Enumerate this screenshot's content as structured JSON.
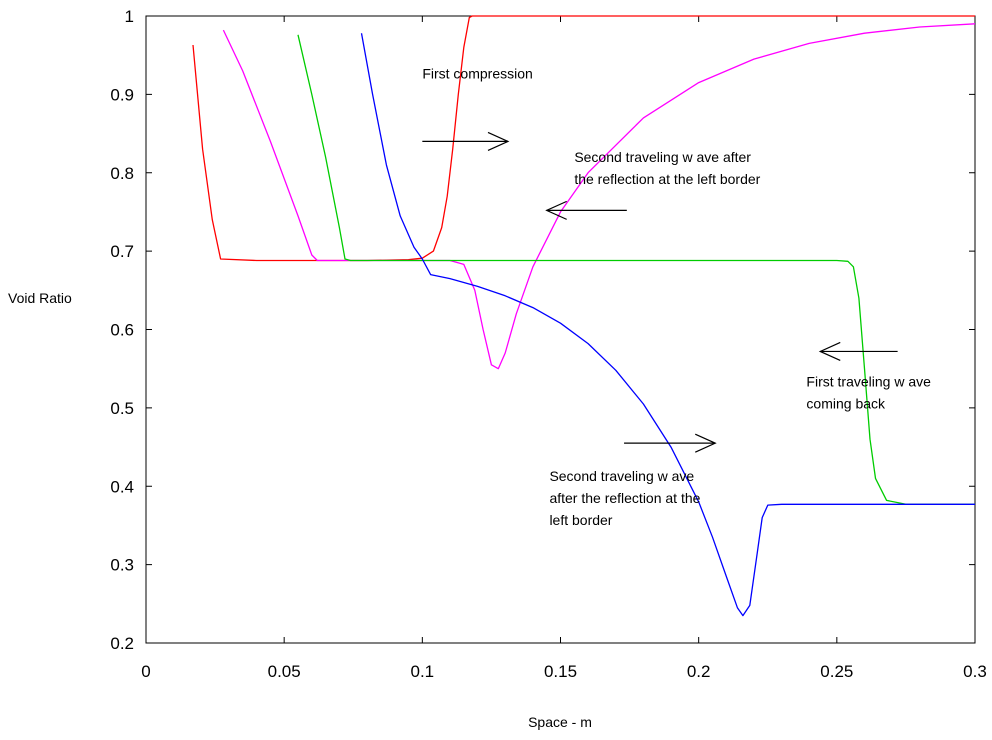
{
  "chart_data": {
    "type": "line",
    "title": "",
    "xlabel": "Space - m",
    "ylabel": "Void Ratio",
    "xlim": [
      0,
      0.3
    ],
    "ylim": [
      0.2,
      1.0
    ],
    "xticks": [
      "0",
      "0.05",
      "0.1",
      "0.15",
      "0.2",
      "0.25",
      "0.3"
    ],
    "yticks": [
      "0.2",
      "0.3",
      "0.4",
      "0.5",
      "0.6",
      "0.7",
      "0.8",
      "0.9",
      "1"
    ],
    "grid": false,
    "legend": "none",
    "series": [
      {
        "color": "#ff0000",
        "points": [
          [
            0.017,
            0.963
          ],
          [
            0.0205,
            0.83
          ],
          [
            0.024,
            0.74
          ],
          [
            0.027,
            0.69
          ],
          [
            0.04,
            0.688
          ],
          [
            0.06,
            0.688
          ],
          [
            0.08,
            0.688
          ],
          [
            0.095,
            0.689
          ],
          [
            0.1,
            0.691
          ],
          [
            0.104,
            0.7
          ],
          [
            0.107,
            0.73
          ],
          [
            0.109,
            0.77
          ],
          [
            0.111,
            0.83
          ],
          [
            0.113,
            0.9
          ],
          [
            0.115,
            0.96
          ],
          [
            0.117,
            0.998
          ],
          [
            0.118,
            1.0
          ],
          [
            0.15,
            1.0
          ],
          [
            0.2,
            1.0
          ],
          [
            0.25,
            1.0
          ],
          [
            0.3,
            1.0
          ]
        ]
      },
      {
        "color": "#ff00ff",
        "points": [
          [
            0.028,
            0.982
          ],
          [
            0.035,
            0.93
          ],
          [
            0.045,
            0.84
          ],
          [
            0.055,
            0.745
          ],
          [
            0.06,
            0.695
          ],
          [
            0.062,
            0.688
          ],
          [
            0.08,
            0.688
          ],
          [
            0.1,
            0.688
          ],
          [
            0.11,
            0.688
          ],
          [
            0.115,
            0.683
          ],
          [
            0.119,
            0.65
          ],
          [
            0.122,
            0.6
          ],
          [
            0.125,
            0.555
          ],
          [
            0.1275,
            0.55
          ],
          [
            0.13,
            0.57
          ],
          [
            0.134,
            0.62
          ],
          [
            0.14,
            0.68
          ],
          [
            0.15,
            0.75
          ],
          [
            0.16,
            0.8
          ],
          [
            0.18,
            0.87
          ],
          [
            0.2,
            0.915
          ],
          [
            0.22,
            0.945
          ],
          [
            0.24,
            0.965
          ],
          [
            0.26,
            0.978
          ],
          [
            0.28,
            0.986
          ],
          [
            0.3,
            0.99
          ]
        ]
      },
      {
        "color": "#00cc00",
        "points": [
          [
            0.055,
            0.976
          ],
          [
            0.06,
            0.9
          ],
          [
            0.065,
            0.82
          ],
          [
            0.07,
            0.73
          ],
          [
            0.072,
            0.69
          ],
          [
            0.074,
            0.688
          ],
          [
            0.1,
            0.688
          ],
          [
            0.15,
            0.688
          ],
          [
            0.2,
            0.688
          ],
          [
            0.25,
            0.688
          ],
          [
            0.254,
            0.687
          ],
          [
            0.256,
            0.68
          ],
          [
            0.258,
            0.64
          ],
          [
            0.26,
            0.55
          ],
          [
            0.262,
            0.46
          ],
          [
            0.264,
            0.41
          ],
          [
            0.268,
            0.382
          ],
          [
            0.275,
            0.377
          ],
          [
            0.3,
            0.377
          ]
        ]
      },
      {
        "color": "#0000ff",
        "points": [
          [
            0.078,
            0.978
          ],
          [
            0.082,
            0.9
          ],
          [
            0.087,
            0.81
          ],
          [
            0.092,
            0.745
          ],
          [
            0.097,
            0.705
          ],
          [
            0.1,
            0.69
          ],
          [
            0.103,
            0.67
          ],
          [
            0.11,
            0.665
          ],
          [
            0.12,
            0.655
          ],
          [
            0.13,
            0.643
          ],
          [
            0.14,
            0.628
          ],
          [
            0.15,
            0.608
          ],
          [
            0.16,
            0.582
          ],
          [
            0.17,
            0.548
          ],
          [
            0.18,
            0.505
          ],
          [
            0.19,
            0.45
          ],
          [
            0.2,
            0.38
          ],
          [
            0.205,
            0.335
          ],
          [
            0.21,
            0.285
          ],
          [
            0.214,
            0.245
          ],
          [
            0.216,
            0.235
          ],
          [
            0.2185,
            0.248
          ],
          [
            0.221,
            0.31
          ],
          [
            0.223,
            0.36
          ],
          [
            0.225,
            0.376
          ],
          [
            0.23,
            0.377
          ],
          [
            0.25,
            0.377
          ],
          [
            0.3,
            0.377
          ]
        ]
      }
    ],
    "annotations": [
      {
        "id": "first-compression",
        "lines": [
          "First compression"
        ],
        "arrow": "right",
        "text_at": [
          0.1,
          0.92
        ],
        "arrow_from": [
          0.1,
          0.84
        ],
        "arrow_to": [
          0.131,
          0.84
        ]
      },
      {
        "id": "second-wave-top",
        "lines": [
          "Second traveling w ave after",
          "the reflection at the left border"
        ],
        "arrow": "left",
        "text_at": [
          0.155,
          0.814
        ],
        "arrow_from": [
          0.174,
          0.752
        ],
        "arrow_to": [
          0.145,
          0.752
        ]
      },
      {
        "id": "first-wave-back",
        "lines": [
          "First traveling w ave",
          "coming back"
        ],
        "arrow": "left",
        "text_at": [
          0.239,
          0.527
        ],
        "arrow_from": [
          0.272,
          0.572
        ],
        "arrow_to": [
          0.244,
          0.572
        ]
      },
      {
        "id": "second-wave-bottom",
        "lines": [
          "Second traveling w ave",
          "after the reflection at the",
          "left border"
        ],
        "arrow": "right",
        "text_at": [
          0.146,
          0.407
        ],
        "arrow_from": [
          0.173,
          0.455
        ],
        "arrow_to": [
          0.206,
          0.455
        ]
      }
    ]
  }
}
